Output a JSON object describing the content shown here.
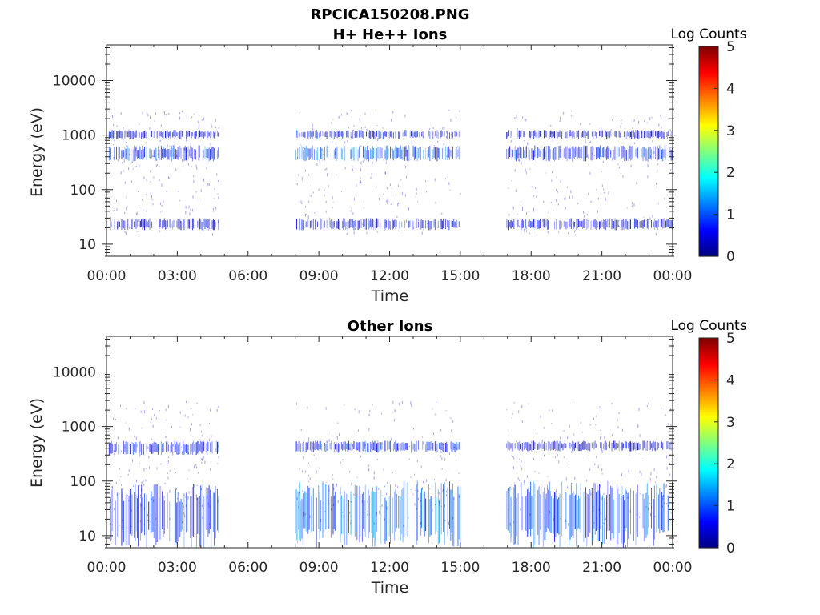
{
  "figure_title": "RPCICA150208.PNG",
  "chart_data": [
    {
      "type": "heatmap",
      "title": "H+ He++ Ions",
      "xlabel": "Time",
      "ylabel": "Energy (eV)",
      "yscale": "log",
      "ylim": [
        6,
        45000
      ],
      "xlim": [
        "00:00",
        "24:00"
      ],
      "x_tick_labels": [
        "00:00",
        "03:00",
        "06:00",
        "09:00",
        "12:00",
        "15:00",
        "18:00",
        "21:00",
        "00:00"
      ],
      "y_tick_labels": [
        "10",
        "100",
        "1000",
        "10000"
      ],
      "y_tick_values": [
        10,
        100,
        1000,
        10000
      ],
      "colorbar": {
        "label": "Log Counts",
        "min": 0,
        "max": 5,
        "tick_labels": [
          "0",
          "1",
          "2",
          "3",
          "4",
          "5"
        ],
        "colormap": "jet"
      },
      "grid": false,
      "data_intervals_hours": [
        [
          0.1,
          4.75
        ],
        [
          8.0,
          15.0
        ],
        [
          16.95,
          24.0
        ]
      ],
      "bands": [
        {
          "t_start_h": 0.1,
          "t_end_h": 4.75,
          "e_low_eV": 18,
          "e_high_eV": 30,
          "log_counts": 0.4
        },
        {
          "t_start_h": 0.1,
          "t_end_h": 4.75,
          "e_low_eV": 330,
          "e_high_eV": 650,
          "log_counts": 0.8
        },
        {
          "t_start_h": 0.1,
          "t_end_h": 4.75,
          "e_low_eV": 850,
          "e_high_eV": 1250,
          "log_counts": 0.5
        },
        {
          "t_start_h": 8.0,
          "t_end_h": 15.0,
          "e_low_eV": 18,
          "e_high_eV": 30,
          "log_counts": 0.5
        },
        {
          "t_start_h": 8.0,
          "t_end_h": 15.0,
          "e_low_eV": 330,
          "e_high_eV": 650,
          "log_counts": 1.0
        },
        {
          "t_start_h": 8.0,
          "t_end_h": 15.0,
          "e_low_eV": 850,
          "e_high_eV": 1250,
          "log_counts": 0.6
        },
        {
          "t_start_h": 16.95,
          "t_end_h": 24.0,
          "e_low_eV": 18,
          "e_high_eV": 30,
          "log_counts": 0.4
        },
        {
          "t_start_h": 16.95,
          "t_end_h": 24.0,
          "e_low_eV": 330,
          "e_high_eV": 650,
          "log_counts": 0.7
        },
        {
          "t_start_h": 16.95,
          "t_end_h": 24.0,
          "e_low_eV": 850,
          "e_high_eV": 1250,
          "log_counts": 0.4
        }
      ]
    },
    {
      "type": "heatmap",
      "title": "Other Ions",
      "xlabel": "Time",
      "ylabel": "Energy (eV)",
      "yscale": "log",
      "ylim": [
        6,
        45000
      ],
      "xlim": [
        "00:00",
        "24:00"
      ],
      "x_tick_labels": [
        "00:00",
        "03:00",
        "06:00",
        "09:00",
        "12:00",
        "15:00",
        "18:00",
        "21:00",
        "00:00"
      ],
      "y_tick_labels": [
        "10",
        "100",
        "1000",
        "10000"
      ],
      "y_tick_values": [
        10,
        100,
        1000,
        10000
      ],
      "colorbar": {
        "label": "Log Counts",
        "min": 0,
        "max": 5,
        "tick_labels": [
          "0",
          "1",
          "2",
          "3",
          "4",
          "5"
        ],
        "colormap": "jet"
      },
      "grid": false,
      "data_intervals_hours": [
        [
          0.1,
          4.75
        ],
        [
          8.0,
          15.0
        ],
        [
          16.95,
          24.0
        ]
      ],
      "bands": [
        {
          "t_start_h": 0.1,
          "t_end_h": 4.75,
          "e_low_eV": 6,
          "e_high_eV": 90,
          "log_counts": 0.8
        },
        {
          "t_start_h": 0.1,
          "t_end_h": 4.75,
          "e_low_eV": 300,
          "e_high_eV": 550,
          "log_counts": 0.6
        },
        {
          "t_start_h": 8.0,
          "t_end_h": 15.0,
          "e_low_eV": 6,
          "e_high_eV": 100,
          "log_counts": 1.1
        },
        {
          "t_start_h": 8.0,
          "t_end_h": 15.0,
          "e_low_eV": 330,
          "e_high_eV": 550,
          "log_counts": 0.7
        },
        {
          "t_start_h": 16.95,
          "t_end_h": 24.0,
          "e_low_eV": 6,
          "e_high_eV": 100,
          "log_counts": 0.9
        },
        {
          "t_start_h": 16.95,
          "t_end_h": 24.0,
          "e_low_eV": 350,
          "e_high_eV": 550,
          "log_counts": 0.4
        }
      ]
    }
  ]
}
